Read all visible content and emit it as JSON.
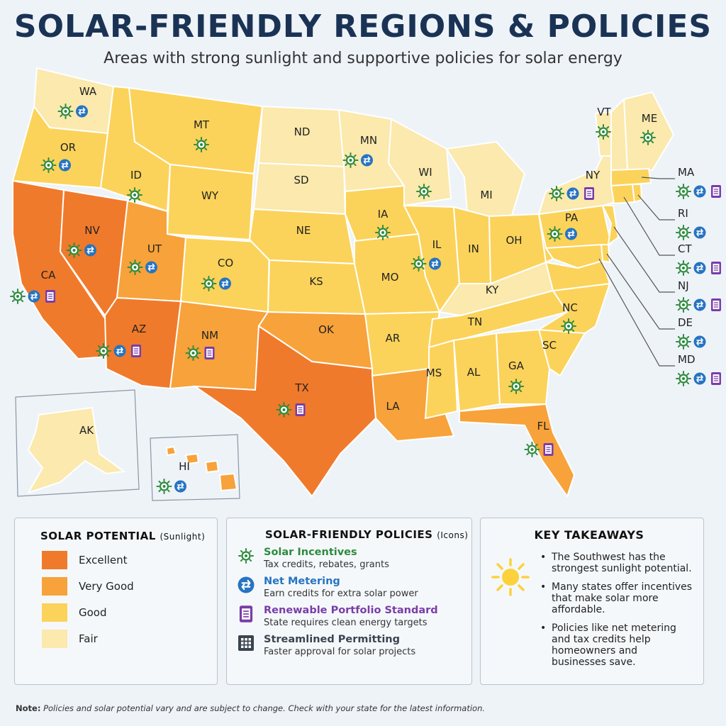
{
  "title": "SOLAR-FRIENDLY REGIONS & POLICIES",
  "subtitle": "Areas with strong sunlight and supportive policies for solar energy",
  "colors": {
    "excellent": "#f07a2b",
    "very_good": "#f7a23a",
    "good": "#fbd35a",
    "fair": "#fbe9ad",
    "incentive": "#2e8b3e",
    "net_metering": "#2674c2",
    "rps": "#7a3da8",
    "permitting": "#3a4450"
  },
  "states": [
    {
      "abbr": "WA",
      "potential": "fair",
      "policies": [
        "incentive",
        "net_metering"
      ]
    },
    {
      "abbr": "OR",
      "potential": "good",
      "policies": [
        "incentive",
        "net_metering"
      ]
    },
    {
      "abbr": "CA",
      "potential": "excellent",
      "policies": [
        "incentive",
        "net_metering",
        "rps"
      ]
    },
    {
      "abbr": "NV",
      "potential": "excellent",
      "policies": [
        "incentive",
        "net_metering"
      ]
    },
    {
      "abbr": "ID",
      "potential": "good",
      "policies": [
        "incentive"
      ]
    },
    {
      "abbr": "MT",
      "potential": "good",
      "policies": [
        "incentive"
      ]
    },
    {
      "abbr": "WY",
      "potential": "good",
      "policies": []
    },
    {
      "abbr": "UT",
      "potential": "very_good",
      "policies": [
        "incentive",
        "net_metering"
      ]
    },
    {
      "abbr": "CO",
      "potential": "good",
      "policies": [
        "incentive",
        "net_metering"
      ]
    },
    {
      "abbr": "AZ",
      "potential": "excellent",
      "policies": [
        "incentive",
        "net_metering",
        "rps"
      ]
    },
    {
      "abbr": "NM",
      "potential": "very_good",
      "policies": [
        "incentive",
        "rps"
      ]
    },
    {
      "abbr": "ND",
      "potential": "fair",
      "policies": []
    },
    {
      "abbr": "SD",
      "potential": "fair",
      "policies": []
    },
    {
      "abbr": "NE",
      "potential": "good",
      "policies": []
    },
    {
      "abbr": "KS",
      "potential": "good",
      "policies": []
    },
    {
      "abbr": "OK",
      "potential": "very_good",
      "policies": []
    },
    {
      "abbr": "TX",
      "potential": "excellent",
      "policies": [
        "incentive",
        "rps"
      ]
    },
    {
      "abbr": "MN",
      "potential": "fair",
      "policies": [
        "incentive",
        "net_metering"
      ]
    },
    {
      "abbr": "IA",
      "potential": "good",
      "policies": [
        "incentive"
      ]
    },
    {
      "abbr": "MO",
      "potential": "good",
      "policies": []
    },
    {
      "abbr": "AR",
      "potential": "good",
      "policies": []
    },
    {
      "abbr": "LA",
      "potential": "very_good",
      "policies": []
    },
    {
      "abbr": "WI",
      "potential": "fair",
      "policies": [
        "incentive"
      ]
    },
    {
      "abbr": "IL",
      "potential": "good",
      "policies": [
        "incentive",
        "net_metering"
      ]
    },
    {
      "abbr": "MI",
      "potential": "fair",
      "policies": []
    },
    {
      "abbr": "IN",
      "potential": "good",
      "policies": []
    },
    {
      "abbr": "OH",
      "potential": "good",
      "policies": []
    },
    {
      "abbr": "KY",
      "potential": "fair",
      "policies": []
    },
    {
      "abbr": "TN",
      "potential": "good",
      "policies": []
    },
    {
      "abbr": "MS",
      "potential": "good",
      "policies": []
    },
    {
      "abbr": "AL",
      "potential": "good",
      "policies": []
    },
    {
      "abbr": "GA",
      "potential": "good",
      "policies": [
        "incentive"
      ]
    },
    {
      "abbr": "FL",
      "potential": "very_good",
      "policies": [
        "incentive",
        "rps"
      ]
    },
    {
      "abbr": "SC",
      "potential": "good",
      "policies": []
    },
    {
      "abbr": "NC",
      "potential": "good",
      "policies": [
        "incentive"
      ]
    },
    {
      "abbr": "PA",
      "potential": "good",
      "policies": [
        "incentive",
        "net_metering"
      ]
    },
    {
      "abbr": "NY",
      "potential": "fair",
      "policies": [
        "incentive",
        "net_metering",
        "rps"
      ]
    },
    {
      "abbr": "VT",
      "potential": "fair",
      "policies": [
        "incentive"
      ]
    },
    {
      "abbr": "ME",
      "potential": "fair",
      "policies": [
        "incentive"
      ]
    },
    {
      "abbr": "AK",
      "potential": "fair",
      "policies": []
    },
    {
      "abbr": "HI",
      "potential": "very_good",
      "policies": [
        "incentive",
        "net_metering"
      ]
    }
  ],
  "northeast_callouts": [
    {
      "abbr": "MA",
      "policies": [
        "incentive",
        "net_metering",
        "rps"
      ]
    },
    {
      "abbr": "RI",
      "policies": [
        "incentive",
        "net_metering"
      ]
    },
    {
      "abbr": "CT",
      "policies": [
        "incentive",
        "net_metering",
        "rps"
      ]
    },
    {
      "abbr": "NJ",
      "policies": [
        "incentive",
        "net_metering",
        "rps"
      ]
    },
    {
      "abbr": "DE",
      "policies": [
        "incentive",
        "net_metering"
      ]
    },
    {
      "abbr": "MD",
      "policies": [
        "incentive",
        "net_metering",
        "rps"
      ]
    }
  ],
  "legend_potential": {
    "title": "SOLAR POTENTIAL",
    "title_suffix": "(Sunlight)",
    "items": [
      {
        "label": "Excellent",
        "key": "excellent"
      },
      {
        "label": "Very Good",
        "key": "very_good"
      },
      {
        "label": "Good",
        "key": "good"
      },
      {
        "label": "Fair",
        "key": "fair"
      }
    ]
  },
  "legend_policies": {
    "title": "SOLAR-FRIENDLY POLICIES",
    "title_suffix": "(Icons)",
    "items": [
      {
        "name": "Solar Incentives",
        "desc": "Tax credits, rebates, grants",
        "key": "incentive"
      },
      {
        "name": "Net Metering",
        "desc": "Earn credits for extra solar power",
        "key": "net_metering"
      },
      {
        "name": "Renewable Portfolio Standard",
        "desc": "State requires clean energy targets",
        "key": "rps"
      },
      {
        "name": "Streamlined Permitting",
        "desc": "Faster approval for solar projects",
        "key": "permitting"
      }
    ]
  },
  "takeaways": {
    "title": "KEY TAKEAWAYS",
    "items": [
      "The Southwest has the strongest sunlight potential.",
      "Many states offer incentives that make solar more affordable.",
      "Policies like net metering and tax credits help homeowners and businesses save."
    ]
  },
  "note": {
    "prefix": "Note:",
    "text": "Policies and solar potential vary and are subject to change. Check with your state for the latest information."
  }
}
